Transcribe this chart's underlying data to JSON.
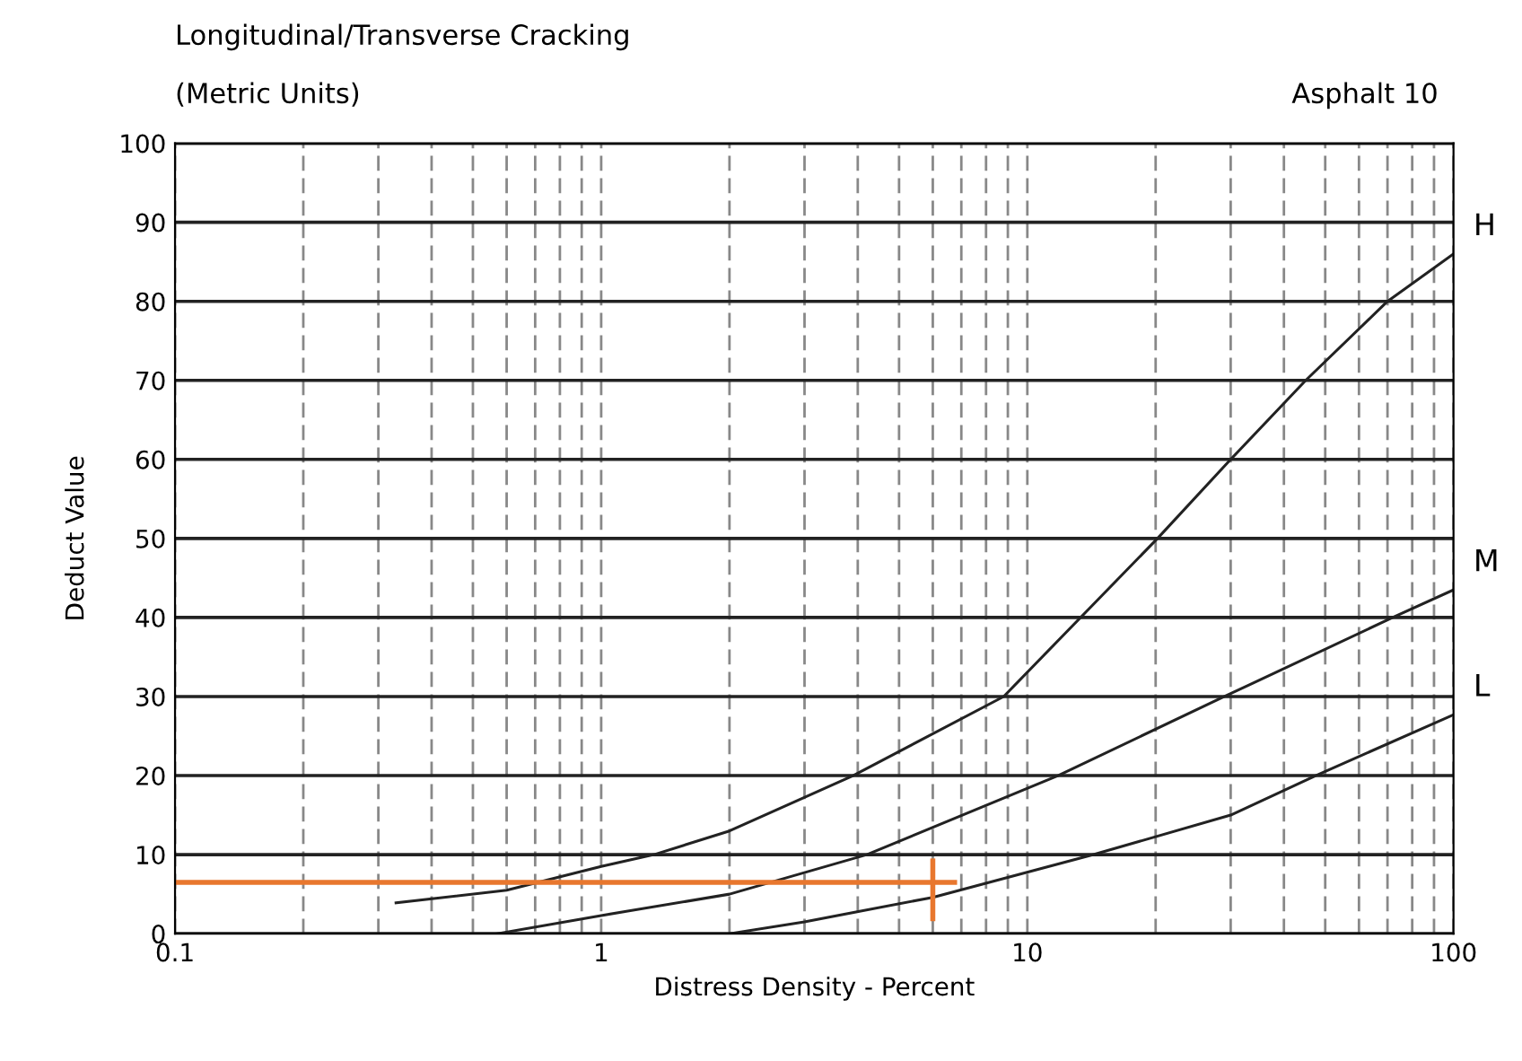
{
  "chart_data": {
    "type": "line",
    "title": "Longitudinal/Transverse Cracking",
    "subtitle": "(Metric Units)",
    "annotations": [
      "Asphalt 10"
    ],
    "xlabel": "Distress Density - Percent",
    "ylabel": "Deduct Value",
    "log": "x",
    "xlim": [
      0.1,
      100
    ],
    "ylim": [
      0,
      100
    ],
    "xticks": [
      0.1,
      {
        "value": 0.2,
        "label": null
      },
      {
        "value": 0.3,
        "label": null
      },
      {
        "value": 0.4,
        "label": null
      },
      {
        "value": 0.5,
        "label": null
      },
      {
        "value": 0.6,
        "label": null
      },
      {
        "value": 0.7,
        "label": null
      },
      {
        "value": 0.8,
        "label": null
      },
      {
        "value": 0.9,
        "label": null
      },
      1,
      {
        "value": 2,
        "label": null
      },
      {
        "value": 3,
        "label": null
      },
      {
        "value": 4,
        "label": null
      },
      {
        "value": 5,
        "label": null
      },
      {
        "value": 6,
        "label": null
      },
      {
        "value": 7,
        "label": null
      },
      {
        "value": 8,
        "label": null
      },
      {
        "value": 9,
        "label": null
      },
      10,
      {
        "value": 20,
        "label": null
      },
      {
        "value": 30,
        "label": null
      },
      {
        "value": 40,
        "label": null
      },
      {
        "value": 50,
        "label": null
      },
      {
        "value": 60,
        "label": null
      },
      {
        "value": 70,
        "label": null
      },
      {
        "value": 80,
        "label": null
      },
      {
        "value": 90,
        "label": null
      },
      100
    ],
    "yticks": [
      0,
      10,
      20,
      30,
      40,
      50,
      60,
      70,
      80,
      90,
      100
    ],
    "grid": true,
    "legend": false,
    "series": [
      {
        "name": "H",
        "color": "#222222",
        "x": [
          0.33,
          0.6,
          1,
          1.33,
          2,
          3.9,
          8.8,
          20.2,
          30,
          45,
          70,
          100
        ],
        "values": [
          3.9,
          5.5,
          8.5,
          10,
          13,
          20,
          30,
          50,
          60,
          70,
          80,
          86
        ]
      },
      {
        "name": "M",
        "color": "#222222",
        "x": [
          0.57,
          1,
          2,
          4.2,
          11.8,
          29,
          72,
          100
        ],
        "values": [
          0,
          2.3,
          5,
          10,
          20,
          30,
          40,
          43.5
        ]
      },
      {
        "name": "L",
        "color": "#222222",
        "x": [
          2,
          3,
          6,
          14.3,
          30,
          47.5,
          100
        ],
        "values": [
          0,
          1.5,
          4.6,
          10,
          15,
          20,
          27.7
        ]
      },
      {
        "color": "#e8772e",
        "x": [
          0.1,
          6.75
        ],
        "values": [
          6.5,
          6.5
        ]
      },
      {
        "color": "#e8772e",
        "x": [
          6,
          6
        ],
        "values": [
          1.9,
          9.2
        ]
      }
    ]
  }
}
